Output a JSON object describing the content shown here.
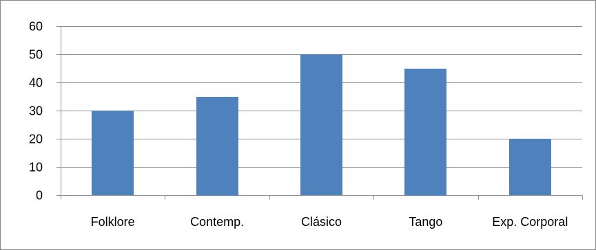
{
  "chart_data": {
    "type": "bar",
    "categories": [
      "Folklore",
      "Contemp.",
      "Clásico",
      "Tango",
      "Exp. Corporal"
    ],
    "values": [
      30,
      35,
      50,
      45,
      20
    ],
    "title": "",
    "xlabel": "",
    "ylabel": "",
    "ylim": [
      0,
      60
    ],
    "yticks": [
      0,
      10,
      20,
      30,
      40,
      50,
      60
    ],
    "grid": true,
    "legend": "none",
    "colors": {
      "bar": "#4f81bd",
      "grid": "#8c8c8c",
      "axis": "#8c8c8c",
      "border": "#878787"
    }
  }
}
